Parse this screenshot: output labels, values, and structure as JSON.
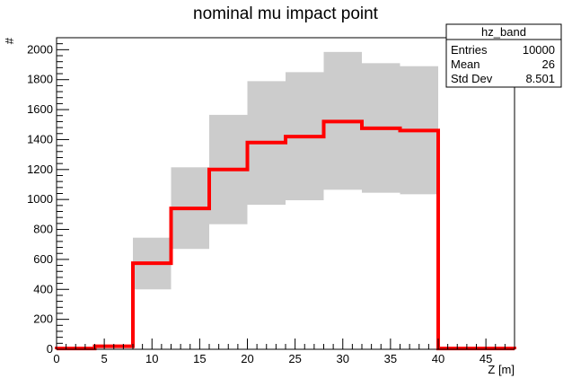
{
  "chart_data": {
    "type": "bar",
    "title": "nominal mu impact point",
    "xlabel": "Z [m]",
    "ylabel": "#",
    "xlim": [
      0,
      48
    ],
    "ylim": [
      0,
      2080
    ],
    "grid": false,
    "x_ticks": [
      0,
      5,
      10,
      15,
      20,
      25,
      30,
      35,
      40,
      45
    ],
    "y_ticks": [
      0,
      200,
      400,
      600,
      800,
      1000,
      1200,
      1400,
      1600,
      1800,
      2000
    ],
    "bin_edges": [
      0,
      4,
      8,
      12,
      16,
      20,
      24,
      28,
      32,
      36,
      40,
      44,
      48
    ],
    "series": [
      {
        "type": "step",
        "color": "#ff0000",
        "values": [
          5,
          20,
          575,
          940,
          1200,
          1380,
          1420,
          1520,
          1475,
          1460,
          5,
          5
        ]
      },
      {
        "type": "band",
        "color": "#cccccc",
        "lower": [
          null,
          null,
          400,
          670,
          835,
          965,
          995,
          1065,
          1045,
          1035,
          null,
          null
        ],
        "upper": [
          null,
          null,
          745,
          1215,
          1565,
          1790,
          1850,
          1985,
          1910,
          1890,
          null,
          null
        ]
      }
    ],
    "stats_box": {
      "name": "hz_band",
      "placement": "top-right",
      "rows": [
        {
          "label": "Entries",
          "value": "10000"
        },
        {
          "label": "Mean",
          "value": "26"
        },
        {
          "label": "Std Dev",
          "value": "8.501"
        }
      ]
    }
  }
}
